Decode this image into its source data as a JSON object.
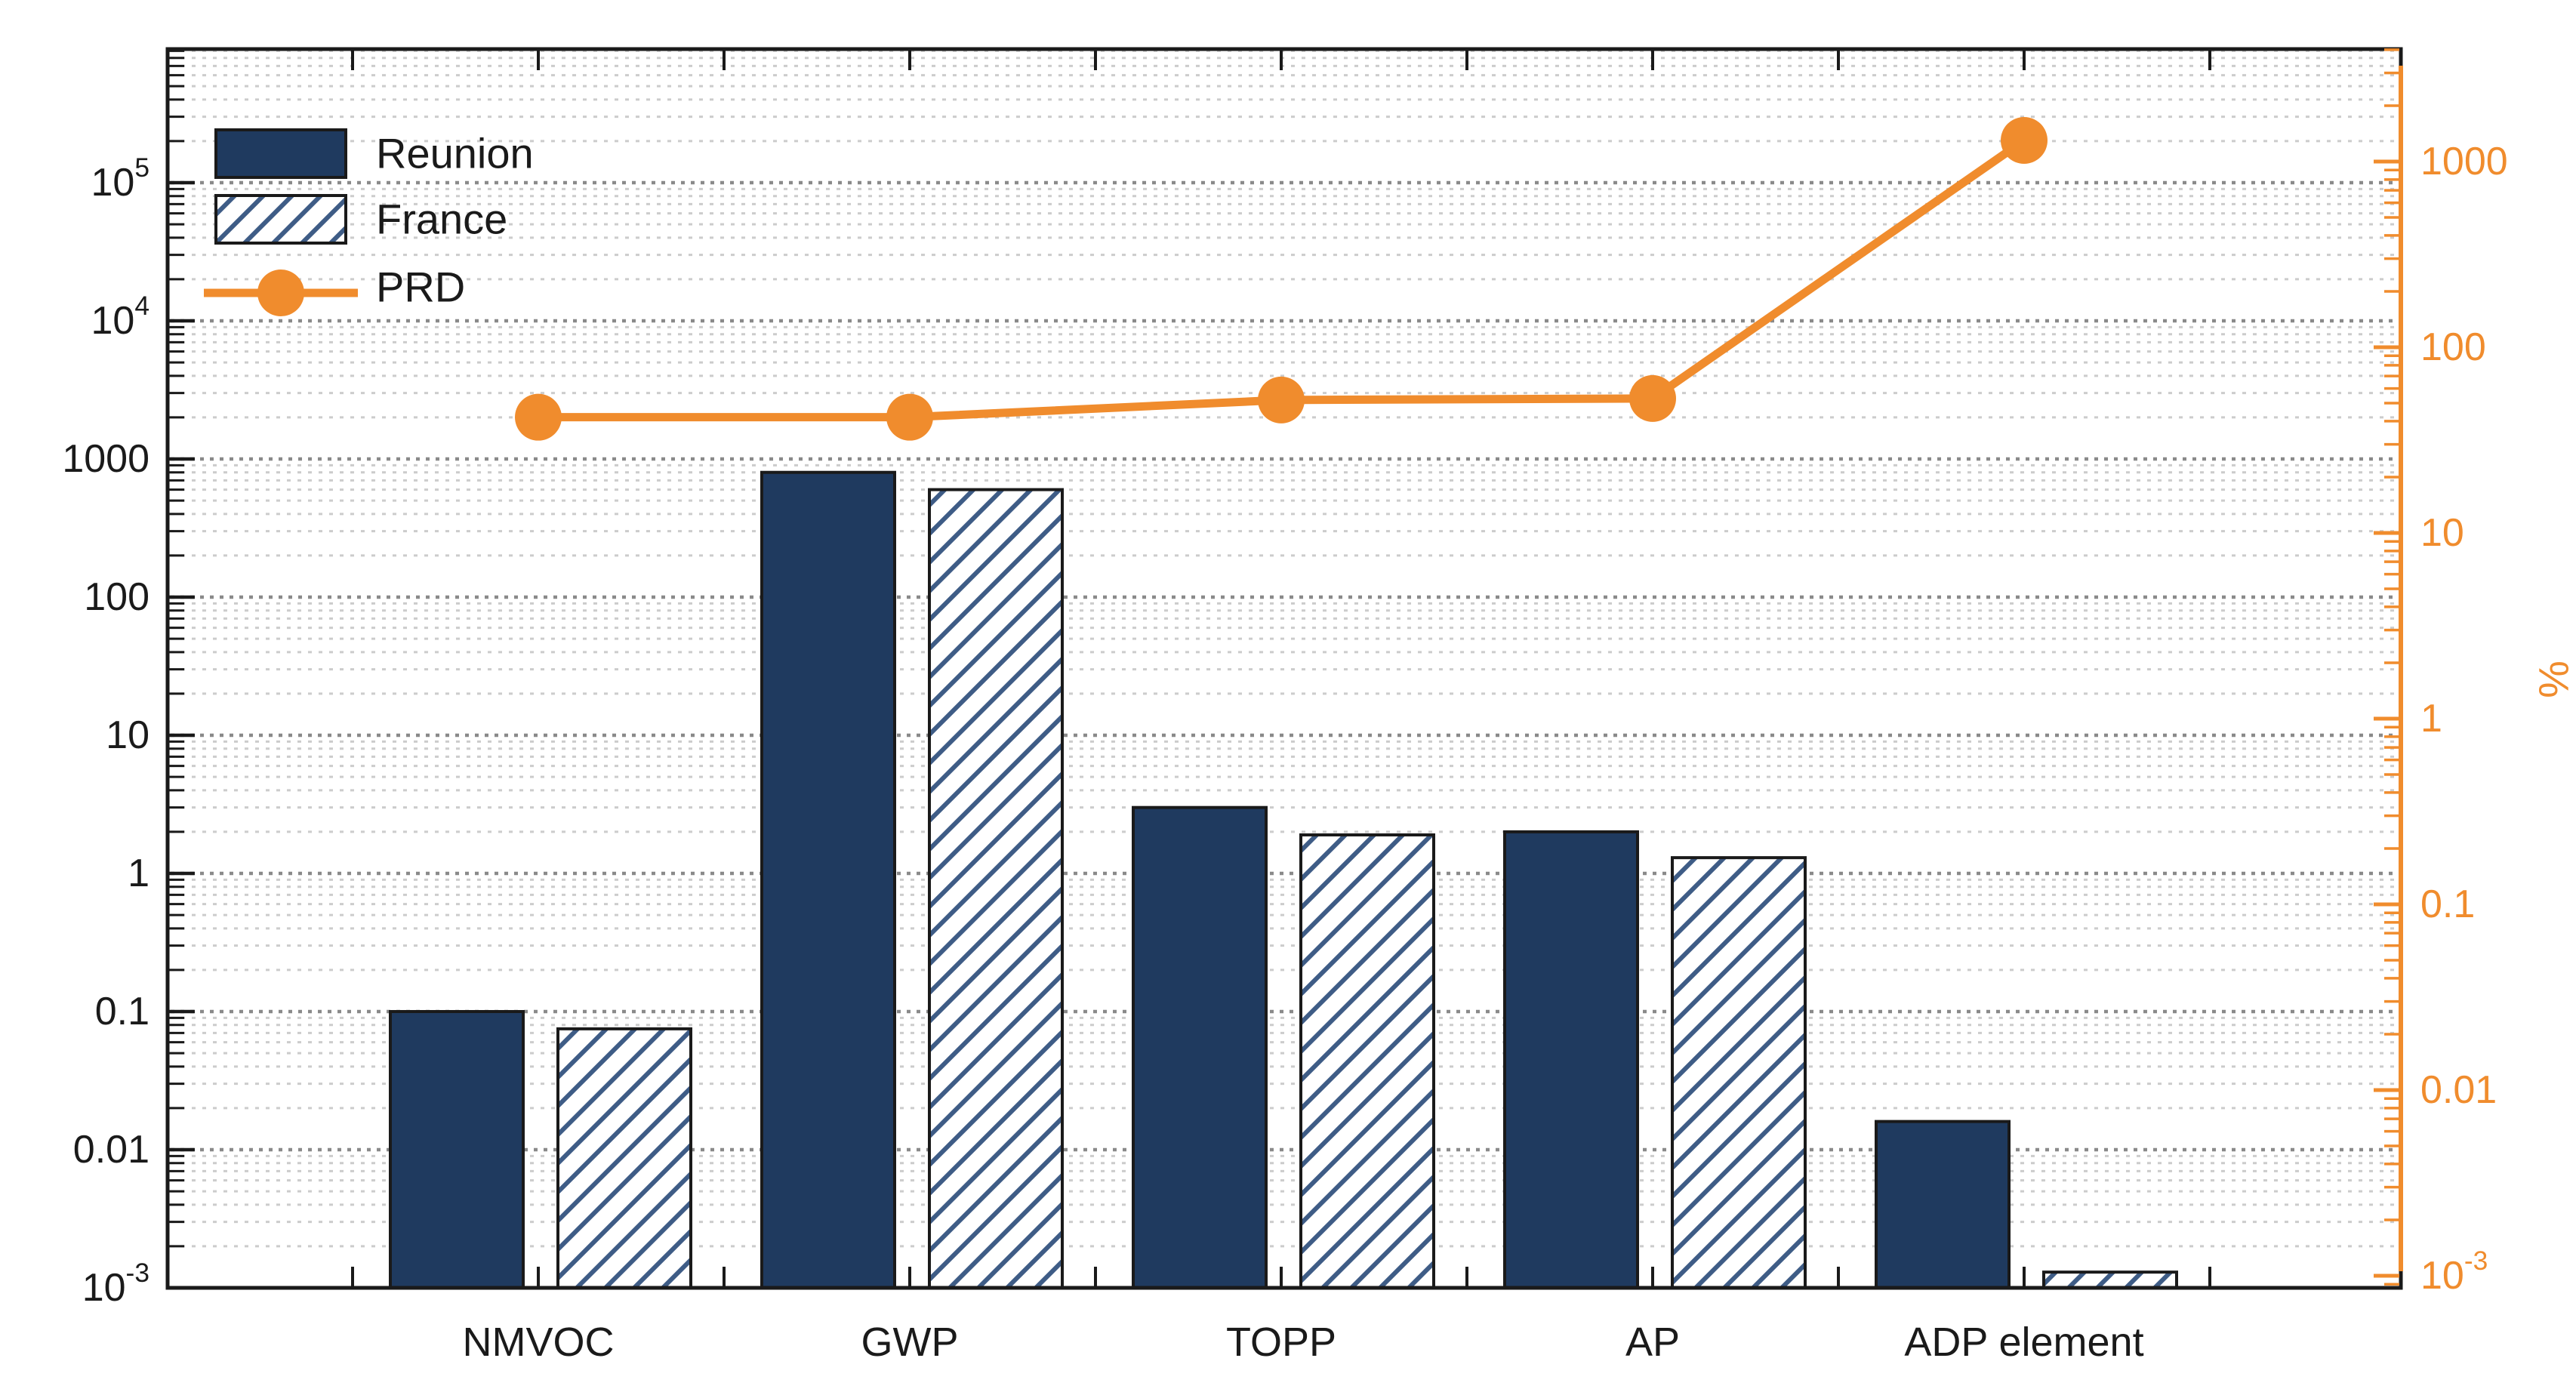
{
  "chart_data": {
    "type": "bar",
    "subtype": "grouped-bars-with-line-overlay-dual-log-axes",
    "categories": [
      "NMVOC",
      "GWP",
      "TOPP",
      "AP",
      "ADP element"
    ],
    "series": [
      {
        "name": "Reunion",
        "kind": "bar",
        "fill": "solid-navy",
        "axis": "left",
        "values": [
          0.1,
          800,
          3.0,
          2.0,
          0.016
        ]
      },
      {
        "name": "France",
        "kind": "bar",
        "fill": "white-hatched",
        "axis": "left",
        "values": [
          0.075,
          600,
          1.9,
          1.3,
          0.0013
        ]
      },
      {
        "name": "PRD",
        "kind": "line",
        "marker": "circle",
        "axis": "right",
        "values": [
          42,
          42,
          52,
          53,
          1300
        ]
      }
    ],
    "left_axis": {
      "scale": "log",
      "min": 0.001,
      "max": 1000000,
      "tick_labels": [
        "10^5",
        "10^4",
        "1000",
        "100",
        "10",
        "1",
        "0.1",
        "0.01",
        "10^-3"
      ],
      "tick_values": [
        100000,
        10000,
        1000,
        100,
        10,
        1,
        0.1,
        0.01,
        0.001
      ]
    },
    "right_axis": {
      "scale": "log",
      "label": "%",
      "min": 0.00085,
      "max": 4000,
      "tick_labels": [
        "1000",
        "100",
        "10",
        "1",
        "0.1",
        "0.01",
        "10^-3"
      ],
      "tick_values": [
        1000,
        100,
        10,
        1,
        0.1,
        0.01,
        0.001
      ]
    },
    "legend": {
      "position": "top-left-inside",
      "entries": [
        "Reunion",
        "France",
        "PRD"
      ]
    },
    "grid": {
      "horizontal_minor": true,
      "horizontal_major": true,
      "style": "dotted"
    }
  },
  "colors": {
    "navy": "#1F3A5F",
    "hatch_line": "#3E5C86",
    "orange": "#F08C2D",
    "frame": "#1A1A1A",
    "text": "#1A1A1A",
    "grid_minor": "#CCCCCC",
    "grid_major": "#8A8A8A",
    "background": "#FFFFFF"
  }
}
